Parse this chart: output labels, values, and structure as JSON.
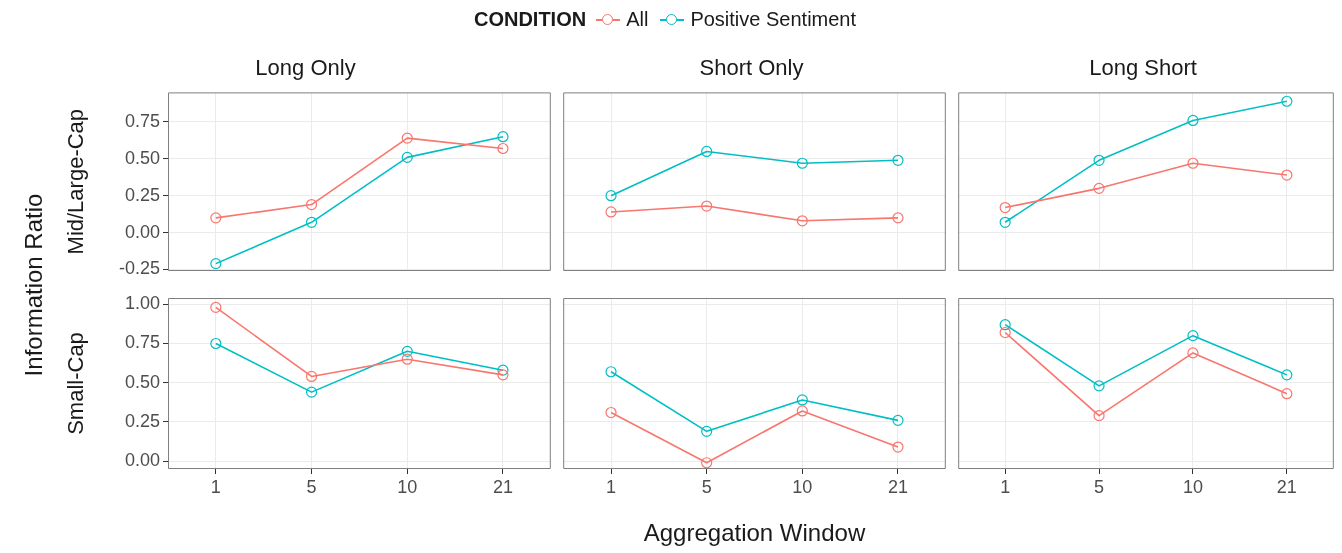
{
  "chart_data": [
    {
      "type": "line",
      "title": "Long Only",
      "ylabel": "Mid/Large-Cap",
      "legend_title": "CONDITION",
      "legend": "top",
      "annotations": [
        "Information Ratio"
      ],
      "categories": [
        "1",
        "5",
        "10",
        "21"
      ],
      "marker": "circle",
      "grid": true,
      "tick_labels": "y",
      "ylim": [
        -0.26,
        0.95
      ],
      "yticks": [
        {
          "value": -0.25,
          "label": "-0.25"
        },
        {
          "value": 0,
          "label": "0.00"
        },
        {
          "value": 0.25,
          "label": "0.25"
        },
        {
          "value": 0.5,
          "label": "0.50"
        },
        {
          "value": 0.75,
          "label": "0.75"
        }
      ],
      "series": [
        {
          "name": "All",
          "color": "#f8766d",
          "values": [
            0.1,
            0.19,
            0.64,
            0.57
          ]
        },
        {
          "name": "Positive Sentiment",
          "color": "#00bfc4",
          "values": [
            -0.21,
            0.07,
            0.51,
            0.65
          ]
        }
      ]
    },
    {
      "type": "line",
      "title": "Short Only",
      "categories": [
        "1",
        "5",
        "10",
        "21"
      ],
      "marker": "circle",
      "grid": true,
      "tick_labels": false,
      "ylim": [
        -0.26,
        0.95
      ],
      "yticks": [
        -0.25,
        0,
        0.25,
        0.5,
        0.75
      ],
      "series": [
        {
          "color": "#f8766d",
          "values": [
            0.14,
            0.18,
            0.08,
            0.1
          ]
        },
        {
          "color": "#00bfc4",
          "values": [
            0.25,
            0.55,
            0.47,
            0.49
          ]
        }
      ]
    },
    {
      "type": "line",
      "title": "Long Short",
      "categories": [
        "1",
        "5",
        "10",
        "21"
      ],
      "marker": "circle",
      "grid": true,
      "tick_labels": false,
      "ylim": [
        -0.26,
        0.95
      ],
      "yticks": [
        -0.25,
        0,
        0.25,
        0.5,
        0.75
      ],
      "series": [
        {
          "color": "#f8766d",
          "values": [
            0.17,
            0.3,
            0.47,
            0.39
          ]
        },
        {
          "color": "#00bfc4",
          "values": [
            0.07,
            0.49,
            0.76,
            0.89
          ]
        }
      ]
    },
    {
      "type": "line",
      "ylabel": "Small-Cap",
      "categories": [
        "1",
        "5",
        "10",
        "21"
      ],
      "marker": "circle",
      "grid": true,
      "ylim": [
        -0.05,
        1.04
      ],
      "yticks": [
        {
          "value": 0,
          "label": "0.00"
        },
        {
          "value": 0.25,
          "label": "0.25"
        },
        {
          "value": 0.5,
          "label": "0.50"
        },
        {
          "value": 0.75,
          "label": "0.75"
        },
        {
          "value": 1,
          "label": "1.00"
        }
      ],
      "series": [
        {
          "color": "#f8766d",
          "values": [
            0.98,
            0.54,
            0.65,
            0.55
          ]
        },
        {
          "color": "#00bfc4",
          "values": [
            0.75,
            0.44,
            0.7,
            0.58
          ]
        }
      ]
    },
    {
      "type": "line",
      "xlabel": "Aggregation Window",
      "categories": [
        "1",
        "5",
        "10",
        "21"
      ],
      "marker": "circle",
      "grid": true,
      "tick_labels": "x",
      "ylim": [
        -0.05,
        1.04
      ],
      "yticks": [
        0,
        0.25,
        0.5,
        0.75,
        1
      ],
      "series": [
        {
          "color": "#f8766d",
          "values": [
            0.31,
            -0.01,
            0.32,
            0.09
          ]
        },
        {
          "color": "#00bfc4",
          "values": [
            0.57,
            0.19,
            0.39,
            0.26
          ]
        }
      ]
    },
    {
      "type": "line",
      "categories": [
        "1",
        "5",
        "10",
        "21"
      ],
      "marker": "circle",
      "grid": true,
      "tick_labels": "x",
      "ylim": [
        -0.05,
        1.04
      ],
      "yticks": [
        0,
        0.25,
        0.5,
        0.75,
        1
      ],
      "series": [
        {
          "color": "#f8766d",
          "values": [
            0.82,
            0.29,
            0.69,
            0.43
          ]
        },
        {
          "color": "#00bfc4",
          "values": [
            0.87,
            0.48,
            0.8,
            0.55
          ]
        }
      ]
    }
  ]
}
